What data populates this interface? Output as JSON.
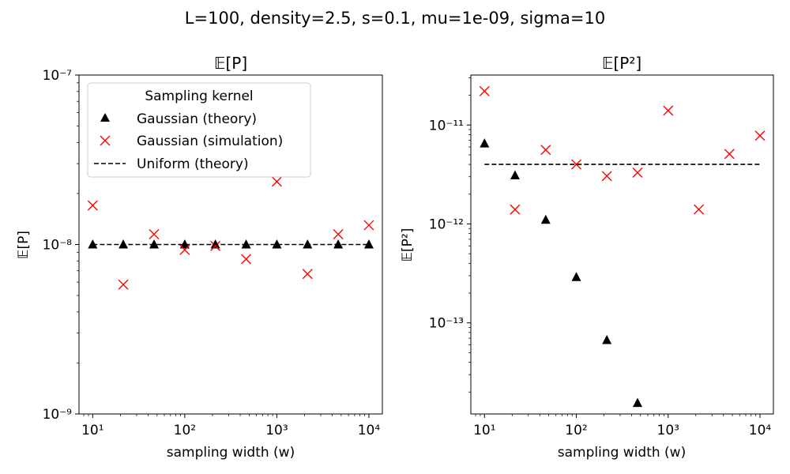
{
  "figure": {
    "suptitle": "L=100, density=2.5, s=0.1, mu=1e-09, sigma=10"
  },
  "chart_data": [
    {
      "type": "scatter",
      "title": "𝔼[P]",
      "xlabel": "sampling width (w)",
      "ylabel": "𝔼[P]",
      "xscale": "log",
      "yscale": "log",
      "xlim": [
        7.1,
        14000
      ],
      "ylim": [
        1e-09,
        1e-07
      ],
      "xticks": [
        "10^1",
        "10^2",
        "10^3",
        "10^4"
      ],
      "yticks": [
        "10^-9",
        "10^-8",
        "10^-7"
      ],
      "legend": {
        "title": "Sampling kernel",
        "placement": "top-left",
        "entries": [
          "Gaussian (theory)",
          "Gaussian (simulation)",
          "Uniform (theory)"
        ]
      },
      "series": [
        {
          "name": "Gaussian (theory)",
          "marker": "triangle",
          "color": "#000000",
          "x": [
            10,
            21.5,
            46.4,
            100,
            215,
            464,
            1000,
            2154,
            4642,
            10000
          ],
          "y": [
            1e-08,
            1e-08,
            1e-08,
            1e-08,
            1e-08,
            1e-08,
            1e-08,
            1e-08,
            1e-08,
            1e-08
          ]
        },
        {
          "name": "Gaussian (simulation)",
          "marker": "x",
          "color": "#ff0000",
          "x": [
            10,
            21.5,
            46.4,
            100,
            215,
            464,
            1000,
            2154,
            4642,
            10000
          ],
          "y": [
            1.7e-08,
            5.8e-09,
            1.15e-08,
            9.3e-09,
            9.8e-09,
            8.2e-09,
            2.35e-08,
            6.7e-09,
            1.15e-08,
            1.3e-08
          ]
        },
        {
          "name": "Uniform (theory)",
          "line": "dashed",
          "color": "#000000",
          "x": [
            10,
            10000
          ],
          "y": [
            1e-08,
            1e-08
          ]
        }
      ]
    },
    {
      "type": "scatter",
      "title": "𝔼[P²]",
      "xlabel": "sampling width (w)",
      "ylabel": "𝔼[P²]",
      "xscale": "log",
      "yscale": "log",
      "xlim": [
        7.1,
        14000
      ],
      "ylim": [
        1.2e-14,
        3.2e-11
      ],
      "xticks": [
        "10^1",
        "10^2",
        "10^3",
        "10^4"
      ],
      "yticks": [
        "10^-13",
        "10^-12",
        "10^-11"
      ],
      "series": [
        {
          "name": "Gaussian (theory)",
          "marker": "triangle",
          "color": "#000000",
          "x": [
            10,
            21.5,
            46.4,
            100,
            215,
            464
          ],
          "y": [
            6.5e-12,
            3.1e-12,
            1.1e-12,
            2.9e-13,
            6.7e-14,
            1.55e-14
          ]
        },
        {
          "name": "Gaussian (simulation)",
          "marker": "x",
          "color": "#ff0000",
          "x": [
            10,
            21.5,
            46.4,
            100,
            215,
            464,
            1000,
            2154,
            4642,
            10000
          ],
          "y": [
            2.2e-11,
            1.4e-12,
            5.6e-12,
            4e-12,
            3.05e-12,
            3.3e-12,
            1.4e-11,
            1.4e-12,
            5.1e-12,
            7.8e-12
          ]
        },
        {
          "name": "Uniform (theory)",
          "line": "dashed",
          "color": "#000000",
          "x": [
            10,
            10000
          ],
          "y": [
            4e-12,
            4e-12
          ]
        }
      ]
    }
  ]
}
